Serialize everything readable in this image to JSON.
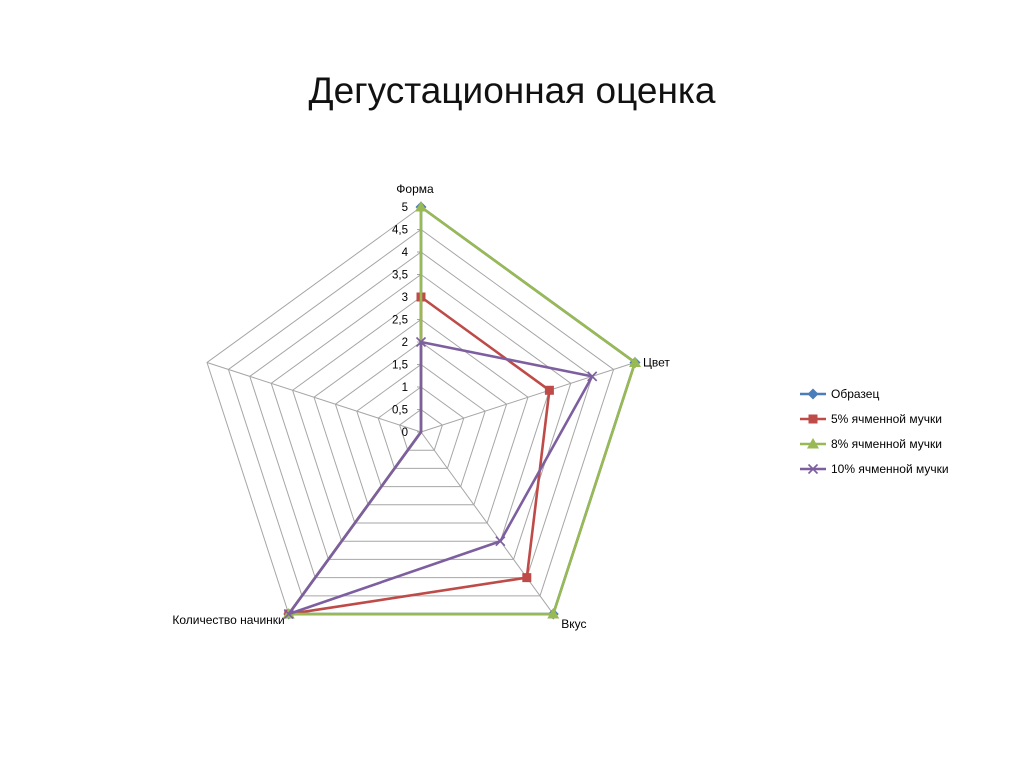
{
  "slide": {
    "title": "Дегустационная оценка"
  },
  "colors": {
    "grid": "#a6a6a6"
  },
  "chart_data": {
    "type": "radar",
    "title": "Дегустационная оценка",
    "axes": [
      "Форма",
      "Цвет",
      "Вкус",
      "Количество начинки",
      ""
    ],
    "rlim": [
      0,
      5
    ],
    "ticks": [
      "0",
      "0,5",
      "1",
      "1,5",
      "2",
      "2,5",
      "3",
      "3,5",
      "4",
      "4,5",
      "5"
    ],
    "tick_values": [
      0,
      0.5,
      1,
      1.5,
      2,
      2.5,
      3,
      3.5,
      4,
      4.5,
      5
    ],
    "grid": true,
    "legend_position": "right",
    "series": [
      {
        "name": "Образец",
        "color": "#4a7ebb",
        "marker": "diamond",
        "values": [
          5,
          5,
          5,
          5,
          0
        ]
      },
      {
        "name": "5% ячменной мучки",
        "color": "#be4b48",
        "marker": "square",
        "values": [
          3,
          3,
          4,
          5,
          0
        ]
      },
      {
        "name": "8% ячменной мучки",
        "color": "#98b954",
        "marker": "triangle",
        "values": [
          5,
          5,
          5,
          5,
          0
        ]
      },
      {
        "name": "10% ячменной мучки",
        "color": "#7d5fa0",
        "marker": "x",
        "values": [
          2,
          4,
          3,
          5,
          0
        ]
      }
    ]
  }
}
